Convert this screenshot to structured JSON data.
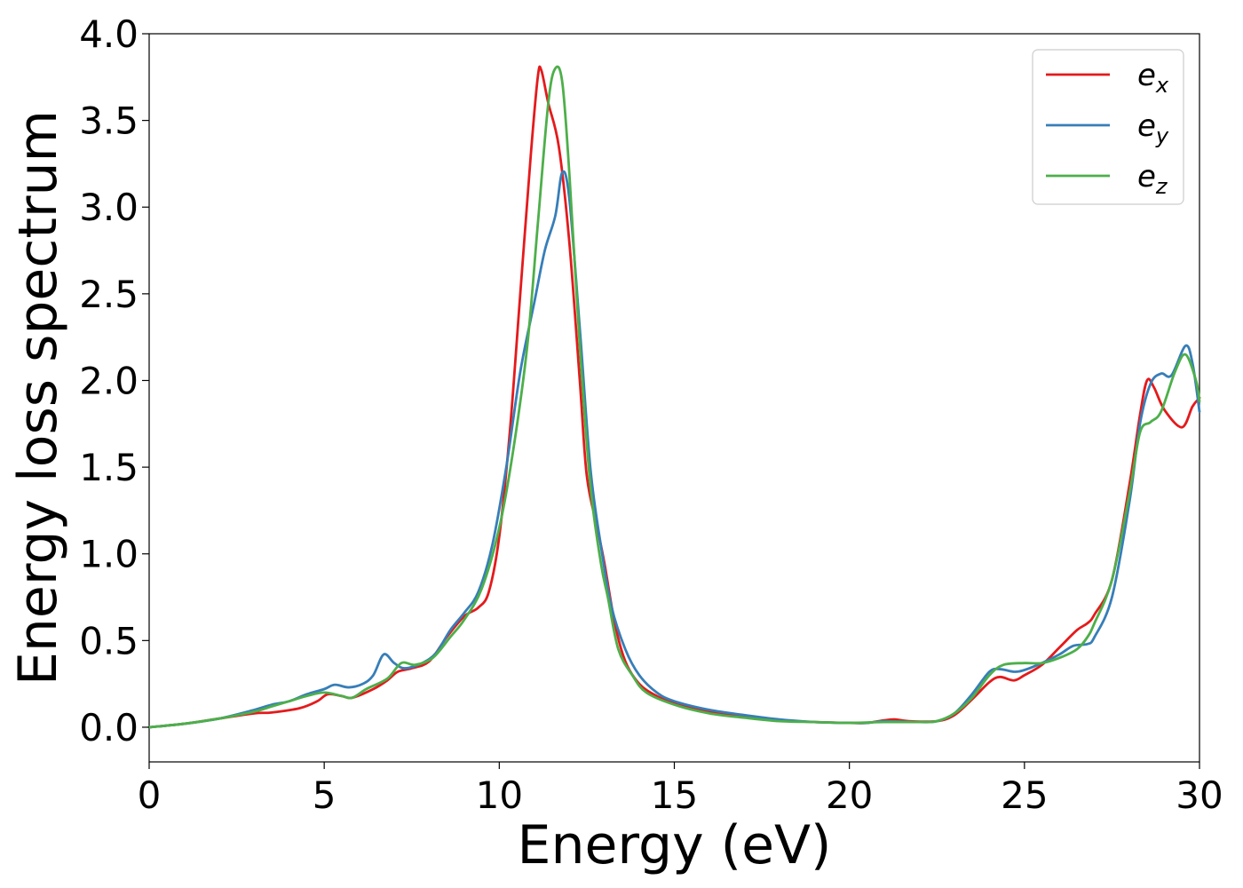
{
  "chart_data": {
    "type": "line",
    "title": "",
    "xlabel": "Energy (eV)",
    "ylabel": "Energy loss spectrum",
    "xlim": [
      0,
      30
    ],
    "ylim": [
      -0.2,
      4.0
    ],
    "xticks": [
      0,
      5,
      10,
      15,
      20,
      25,
      30
    ],
    "xtick_labels": [
      "0",
      "5",
      "10",
      "15",
      "20",
      "25",
      "30"
    ],
    "yticks": [
      0.0,
      0.5,
      1.0,
      1.5,
      2.0,
      2.5,
      3.0,
      3.5,
      4.0
    ],
    "ytick_labels": [
      "0.0",
      "0.5",
      "1.0",
      "1.5",
      "2.0",
      "2.5",
      "3.0",
      "3.5",
      "4.0"
    ],
    "grid": false,
    "legend_position": "top-right",
    "series": [
      {
        "name": "e_x",
        "label_base": "e",
        "label_sub": "x",
        "color": "#e41a1c",
        "points": [
          [
            0,
            0
          ],
          [
            1,
            0.02
          ],
          [
            2,
            0.05
          ],
          [
            3,
            0.08
          ],
          [
            3.5,
            0.085
          ],
          [
            4.3,
            0.11
          ],
          [
            4.8,
            0.15
          ],
          [
            5.1,
            0.19
          ],
          [
            5.5,
            0.18
          ],
          [
            5.8,
            0.17
          ],
          [
            6.4,
            0.22
          ],
          [
            6.8,
            0.27
          ],
          [
            7.1,
            0.32
          ],
          [
            7.5,
            0.34
          ],
          [
            8,
            0.38
          ],
          [
            8.5,
            0.52
          ],
          [
            9,
            0.64
          ],
          [
            9.4,
            0.69
          ],
          [
            9.7,
            0.78
          ],
          [
            10,
            1.1
          ],
          [
            10.3,
            1.7
          ],
          [
            10.6,
            2.5
          ],
          [
            10.9,
            3.3
          ],
          [
            11.1,
            3.75
          ],
          [
            11.2,
            3.79
          ],
          [
            11.4,
            3.6
          ],
          [
            11.7,
            3.35
          ],
          [
            12,
            2.8
          ],
          [
            12.3,
            2.0
          ],
          [
            12.5,
            1.45
          ],
          [
            12.8,
            1.15
          ],
          [
            13,
            0.95
          ],
          [
            13.3,
            0.6
          ],
          [
            13.6,
            0.38
          ],
          [
            14,
            0.25
          ],
          [
            14.5,
            0.18
          ],
          [
            15,
            0.14
          ],
          [
            16,
            0.09
          ],
          [
            17,
            0.06
          ],
          [
            18,
            0.04
          ],
          [
            19,
            0.03
          ],
          [
            20,
            0.025
          ],
          [
            20.5,
            0.025
          ],
          [
            21,
            0.04
          ],
          [
            21.3,
            0.045
          ],
          [
            21.7,
            0.035
          ],
          [
            22.5,
            0.035
          ],
          [
            23,
            0.07
          ],
          [
            23.5,
            0.16
          ],
          [
            24,
            0.26
          ],
          [
            24.3,
            0.29
          ],
          [
            24.7,
            0.27
          ],
          [
            25,
            0.3
          ],
          [
            25.5,
            0.36
          ],
          [
            26,
            0.46
          ],
          [
            26.5,
            0.56
          ],
          [
            26.8,
            0.6
          ],
          [
            27,
            0.65
          ],
          [
            27.5,
            0.85
          ],
          [
            28,
            1.4
          ],
          [
            28.3,
            1.8
          ],
          [
            28.5,
            2.0
          ],
          [
            28.7,
            1.96
          ],
          [
            29,
            1.83
          ],
          [
            29.5,
            1.73
          ],
          [
            29.8,
            1.85
          ],
          [
            30,
            1.9
          ]
        ]
      },
      {
        "name": "e_y",
        "label_base": "e",
        "label_sub": "y",
        "color": "#377eb8",
        "points": [
          [
            0,
            0
          ],
          [
            1,
            0.02
          ],
          [
            2,
            0.05
          ],
          [
            3,
            0.1
          ],
          [
            3.5,
            0.13
          ],
          [
            4,
            0.15
          ],
          [
            4.5,
            0.19
          ],
          [
            5,
            0.22
          ],
          [
            5.3,
            0.245
          ],
          [
            5.7,
            0.23
          ],
          [
            6.1,
            0.25
          ],
          [
            6.4,
            0.3
          ],
          [
            6.7,
            0.42
          ],
          [
            7,
            0.37
          ],
          [
            7.3,
            0.34
          ],
          [
            7.8,
            0.37
          ],
          [
            8.2,
            0.43
          ],
          [
            8.6,
            0.56
          ],
          [
            9,
            0.66
          ],
          [
            9.4,
            0.78
          ],
          [
            9.8,
            1.05
          ],
          [
            10.2,
            1.5
          ],
          [
            10.6,
            2.05
          ],
          [
            11,
            2.45
          ],
          [
            11.3,
            2.75
          ],
          [
            11.6,
            2.95
          ],
          [
            11.8,
            3.2
          ],
          [
            12,
            3.05
          ],
          [
            12.3,
            2.3
          ],
          [
            12.6,
            1.5
          ],
          [
            12.9,
            1.05
          ],
          [
            13.2,
            0.7
          ],
          [
            13.6,
            0.45
          ],
          [
            14,
            0.3
          ],
          [
            14.5,
            0.2
          ],
          [
            15,
            0.15
          ],
          [
            16,
            0.1
          ],
          [
            17,
            0.07
          ],
          [
            18,
            0.045
          ],
          [
            19,
            0.03
          ],
          [
            20,
            0.025
          ],
          [
            20.5,
            0.025
          ],
          [
            21,
            0.035
          ],
          [
            22,
            0.03
          ],
          [
            22.5,
            0.035
          ],
          [
            23,
            0.08
          ],
          [
            23.5,
            0.19
          ],
          [
            24,
            0.32
          ],
          [
            24.3,
            0.335
          ],
          [
            24.7,
            0.32
          ],
          [
            25,
            0.33
          ],
          [
            25.5,
            0.37
          ],
          [
            26,
            0.42
          ],
          [
            26.4,
            0.47
          ],
          [
            26.8,
            0.48
          ],
          [
            27,
            0.52
          ],
          [
            27.5,
            0.75
          ],
          [
            28,
            1.3
          ],
          [
            28.3,
            1.75
          ],
          [
            28.6,
            1.98
          ],
          [
            28.9,
            2.04
          ],
          [
            29.2,
            2.03
          ],
          [
            29.6,
            2.2
          ],
          [
            29.8,
            2.1
          ],
          [
            30,
            1.82
          ]
        ]
      },
      {
        "name": "e_z",
        "label_base": "e",
        "label_sub": "z",
        "color": "#4daf4a",
        "points": [
          [
            0,
            0
          ],
          [
            1,
            0.02
          ],
          [
            2,
            0.05
          ],
          [
            3,
            0.09
          ],
          [
            3.5,
            0.12
          ],
          [
            4,
            0.15
          ],
          [
            4.5,
            0.18
          ],
          [
            5,
            0.2
          ],
          [
            5.5,
            0.18
          ],
          [
            5.8,
            0.17
          ],
          [
            6.2,
            0.22
          ],
          [
            6.8,
            0.28
          ],
          [
            7.2,
            0.37
          ],
          [
            7.6,
            0.36
          ],
          [
            8.1,
            0.4
          ],
          [
            8.6,
            0.52
          ],
          [
            9,
            0.62
          ],
          [
            9.5,
            0.8
          ],
          [
            10,
            1.15
          ],
          [
            10.4,
            1.6
          ],
          [
            10.8,
            2.2
          ],
          [
            11.1,
            2.9
          ],
          [
            11.4,
            3.6
          ],
          [
            11.6,
            3.8
          ],
          [
            11.8,
            3.72
          ],
          [
            12,
            3.2
          ],
          [
            12.3,
            2.2
          ],
          [
            12.6,
            1.4
          ],
          [
            12.9,
            0.95
          ],
          [
            13.1,
            0.75
          ],
          [
            13.4,
            0.45
          ],
          [
            13.8,
            0.3
          ],
          [
            14.2,
            0.2
          ],
          [
            15,
            0.13
          ],
          [
            16,
            0.08
          ],
          [
            17,
            0.055
          ],
          [
            18,
            0.035
          ],
          [
            19,
            0.03
          ],
          [
            20,
            0.025
          ],
          [
            21,
            0.03
          ],
          [
            22,
            0.03
          ],
          [
            22.5,
            0.035
          ],
          [
            23,
            0.08
          ],
          [
            23.5,
            0.17
          ],
          [
            24,
            0.3
          ],
          [
            24.4,
            0.36
          ],
          [
            25,
            0.37
          ],
          [
            25.5,
            0.37
          ],
          [
            26,
            0.4
          ],
          [
            26.5,
            0.45
          ],
          [
            26.8,
            0.52
          ],
          [
            27,
            0.6
          ],
          [
            27.5,
            0.85
          ],
          [
            28,
            1.35
          ],
          [
            28.3,
            1.7
          ],
          [
            28.6,
            1.76
          ],
          [
            28.9,
            1.82
          ],
          [
            29.3,
            2.05
          ],
          [
            29.6,
            2.15
          ],
          [
            29.9,
            2.0
          ],
          [
            30,
            1.88
          ]
        ]
      }
    ]
  }
}
